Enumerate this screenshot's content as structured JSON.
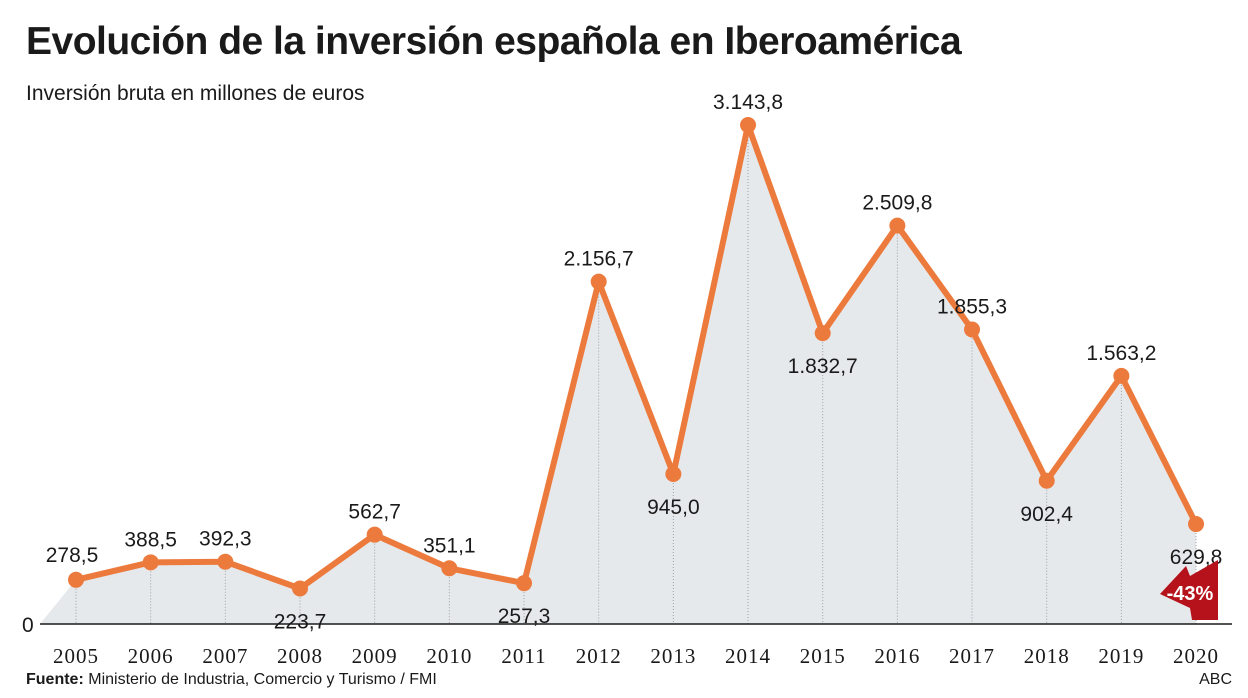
{
  "title": "Evolución de la inversión española en Iberoamérica",
  "subtitle": "Inversión bruta en millones de euros",
  "source_label": "Fuente:",
  "source_text": "Ministerio de Industria, Comercio y Turismo / FMI",
  "credit": "ABC",
  "chart_data": {
    "type": "area",
    "title": "Evolución de la inversión española en Iberoamérica",
    "subtitle": "Inversión bruta en millones de euros",
    "categories": [
      "2005",
      "2006",
      "2007",
      "2008",
      "2009",
      "2010",
      "2011",
      "2012",
      "2013",
      "2014",
      "2015",
      "2016",
      "2017",
      "2018",
      "2019",
      "2020"
    ],
    "values": [
      278.5,
      388.5,
      392.3,
      223.7,
      562.7,
      351.1,
      257.3,
      2156.7,
      945.0,
      3143.8,
      1832.7,
      2509.8,
      1855.3,
      902.4,
      1563.2,
      629.8
    ],
    "value_labels": [
      "278,5",
      "388,5",
      "392,3",
      "223,7",
      "562,7",
      "351,1",
      "257,3",
      "2.156,7",
      "945,0",
      "3.143,8",
      "1.832,7",
      "2.509,8",
      "1.855,3",
      "902,4",
      "1.563,2",
      "629,8"
    ],
    "label_position": [
      "above",
      "above",
      "above",
      "below",
      "above",
      "above",
      "below",
      "above",
      "below",
      "above",
      "below",
      "above",
      "above",
      "below",
      "above",
      "below"
    ],
    "y_tick_labels": [
      "0"
    ],
    "ylim": [
      0,
      3143.8
    ],
    "grid": false,
    "annotation": "-43%",
    "colors": {
      "line": "#ec7a3c",
      "fill": "#e6e9ec",
      "annotation": "#b5121b",
      "axis": "#1a1a1a"
    }
  }
}
